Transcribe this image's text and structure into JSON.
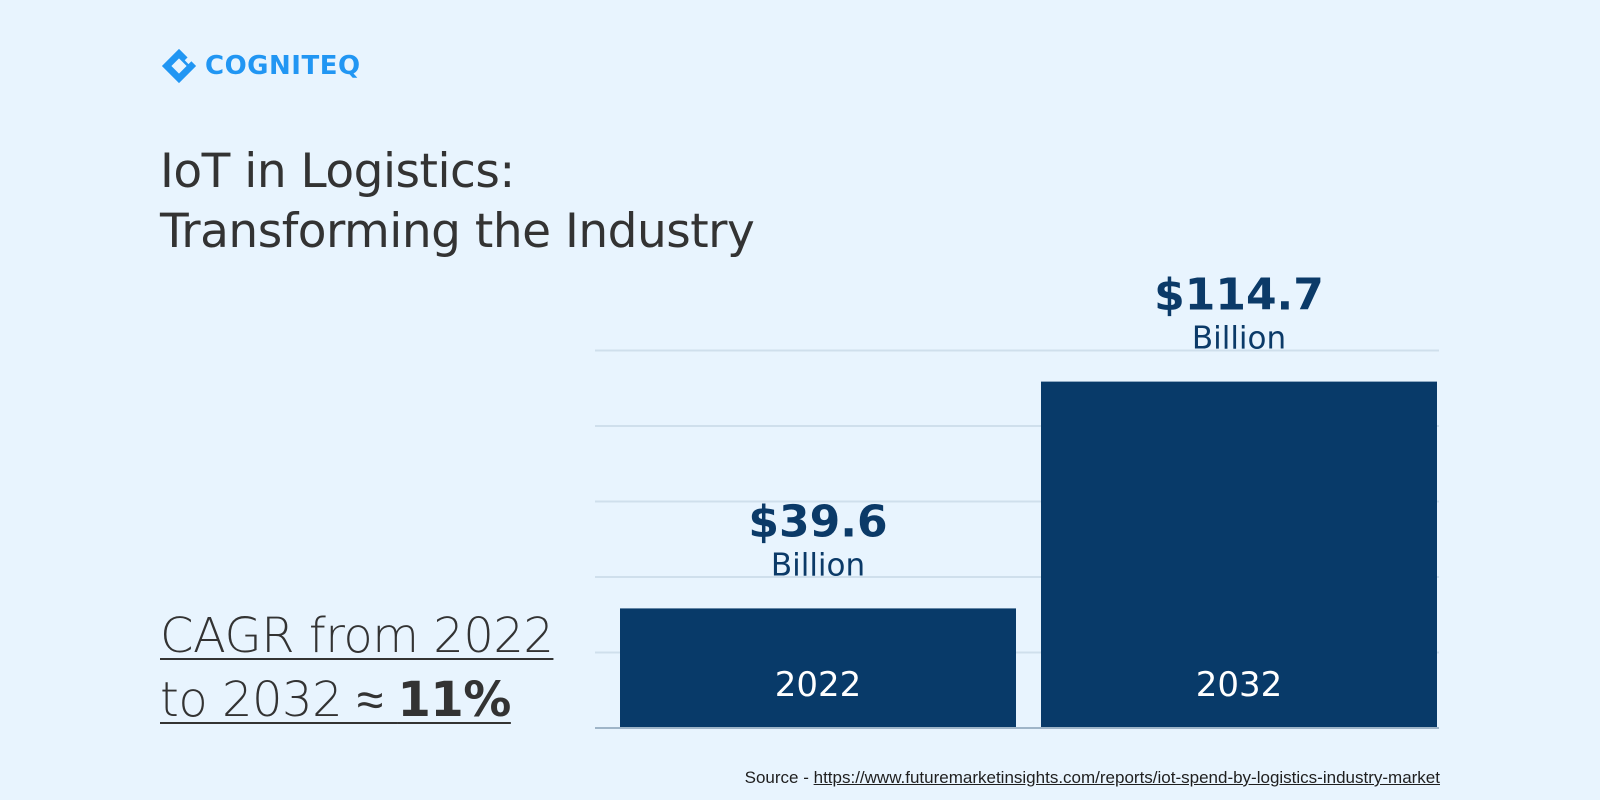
{
  "brand": {
    "name": "COGNITEQ",
    "logo_icon": "cogniteq-diamond-logo-icon",
    "color": "#2196f3"
  },
  "title": {
    "line1": "IoT in Logistics:",
    "line2": "Transforming the Industry"
  },
  "cagr": {
    "line1": "CAGR from 2022",
    "line2_prefix": "to 2032  ≈ ",
    "value": "11%"
  },
  "source": {
    "label": "Source - ",
    "url_text": "https://www.futuremarketinsights.com/reports/iot-spend-by-logistics-industry-market"
  },
  "colors": {
    "background": "#e8f4fe",
    "bar": "#083a69",
    "value_label": "#0b3a68",
    "gridline": "#cfdfec",
    "text": "#333333"
  },
  "chart_data": {
    "type": "bar",
    "title": "IoT in Logistics: Transforming the Industry",
    "xlabel": "",
    "ylabel": "",
    "unit": "Billion",
    "categories": [
      "2022",
      "2032"
    ],
    "values": [
      39.6,
      114.7
    ],
    "value_labels": [
      "$39.6",
      "$114.7"
    ],
    "ylim": [
      0,
      150
    ],
    "grid": true
  }
}
